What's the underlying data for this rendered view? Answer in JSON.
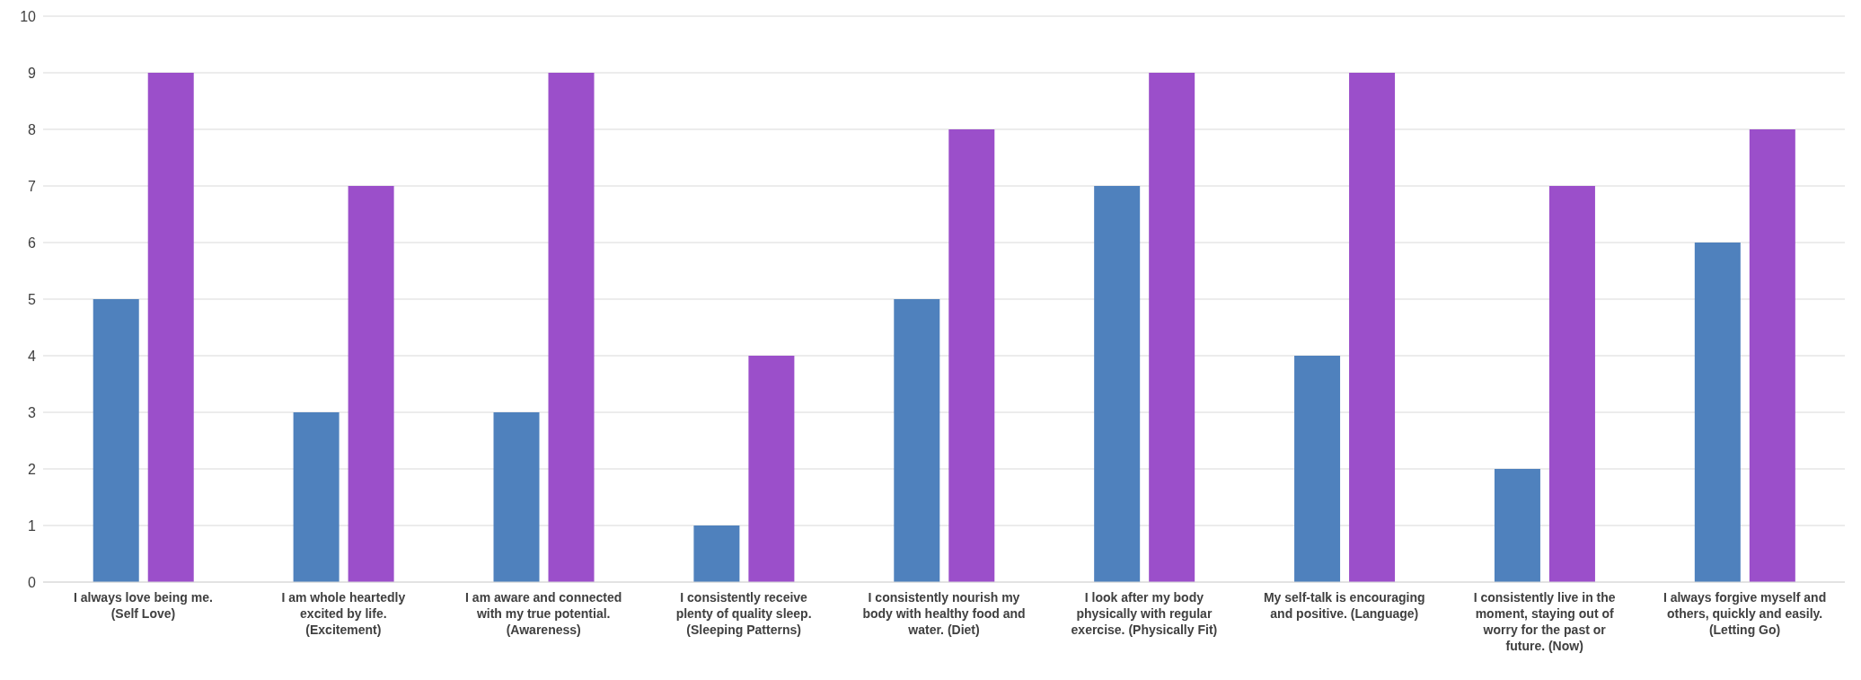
{
  "chart_data": {
    "type": "bar",
    "categories": [
      "I always love being me. (Self Love)",
      "I am whole heartedly excited by life. (Excitement)",
      "I am aware and connected with my true potential. (Awareness)",
      "I consistently receive plenty of quality sleep. (Sleeping Patterns)",
      "I consistently nourish my body with healthy food and water. (Diet)",
      "I look after my body physically with regular exercise. (Physically Fit)",
      "My self-talk is encouraging and positive. (Language)",
      "I consistently live in the moment, staying out of worry for the past or future. (Now)",
      "I always forgive myself and others, quickly and easily. (Letting Go)"
    ],
    "series": [
      {
        "color": "#4f81bd",
        "values": [
          5,
          3,
          3,
          1,
          5,
          7,
          4,
          2,
          6
        ]
      },
      {
        "color": "#9b4fca",
        "values": [
          9,
          7,
          9,
          4,
          8,
          9,
          9,
          7,
          8
        ]
      }
    ],
    "ylim": [
      0,
      10
    ],
    "yticks": [
      0,
      1,
      2,
      3,
      4,
      5,
      6,
      7,
      8,
      9,
      10
    ],
    "grid": "y",
    "legend": false
  }
}
